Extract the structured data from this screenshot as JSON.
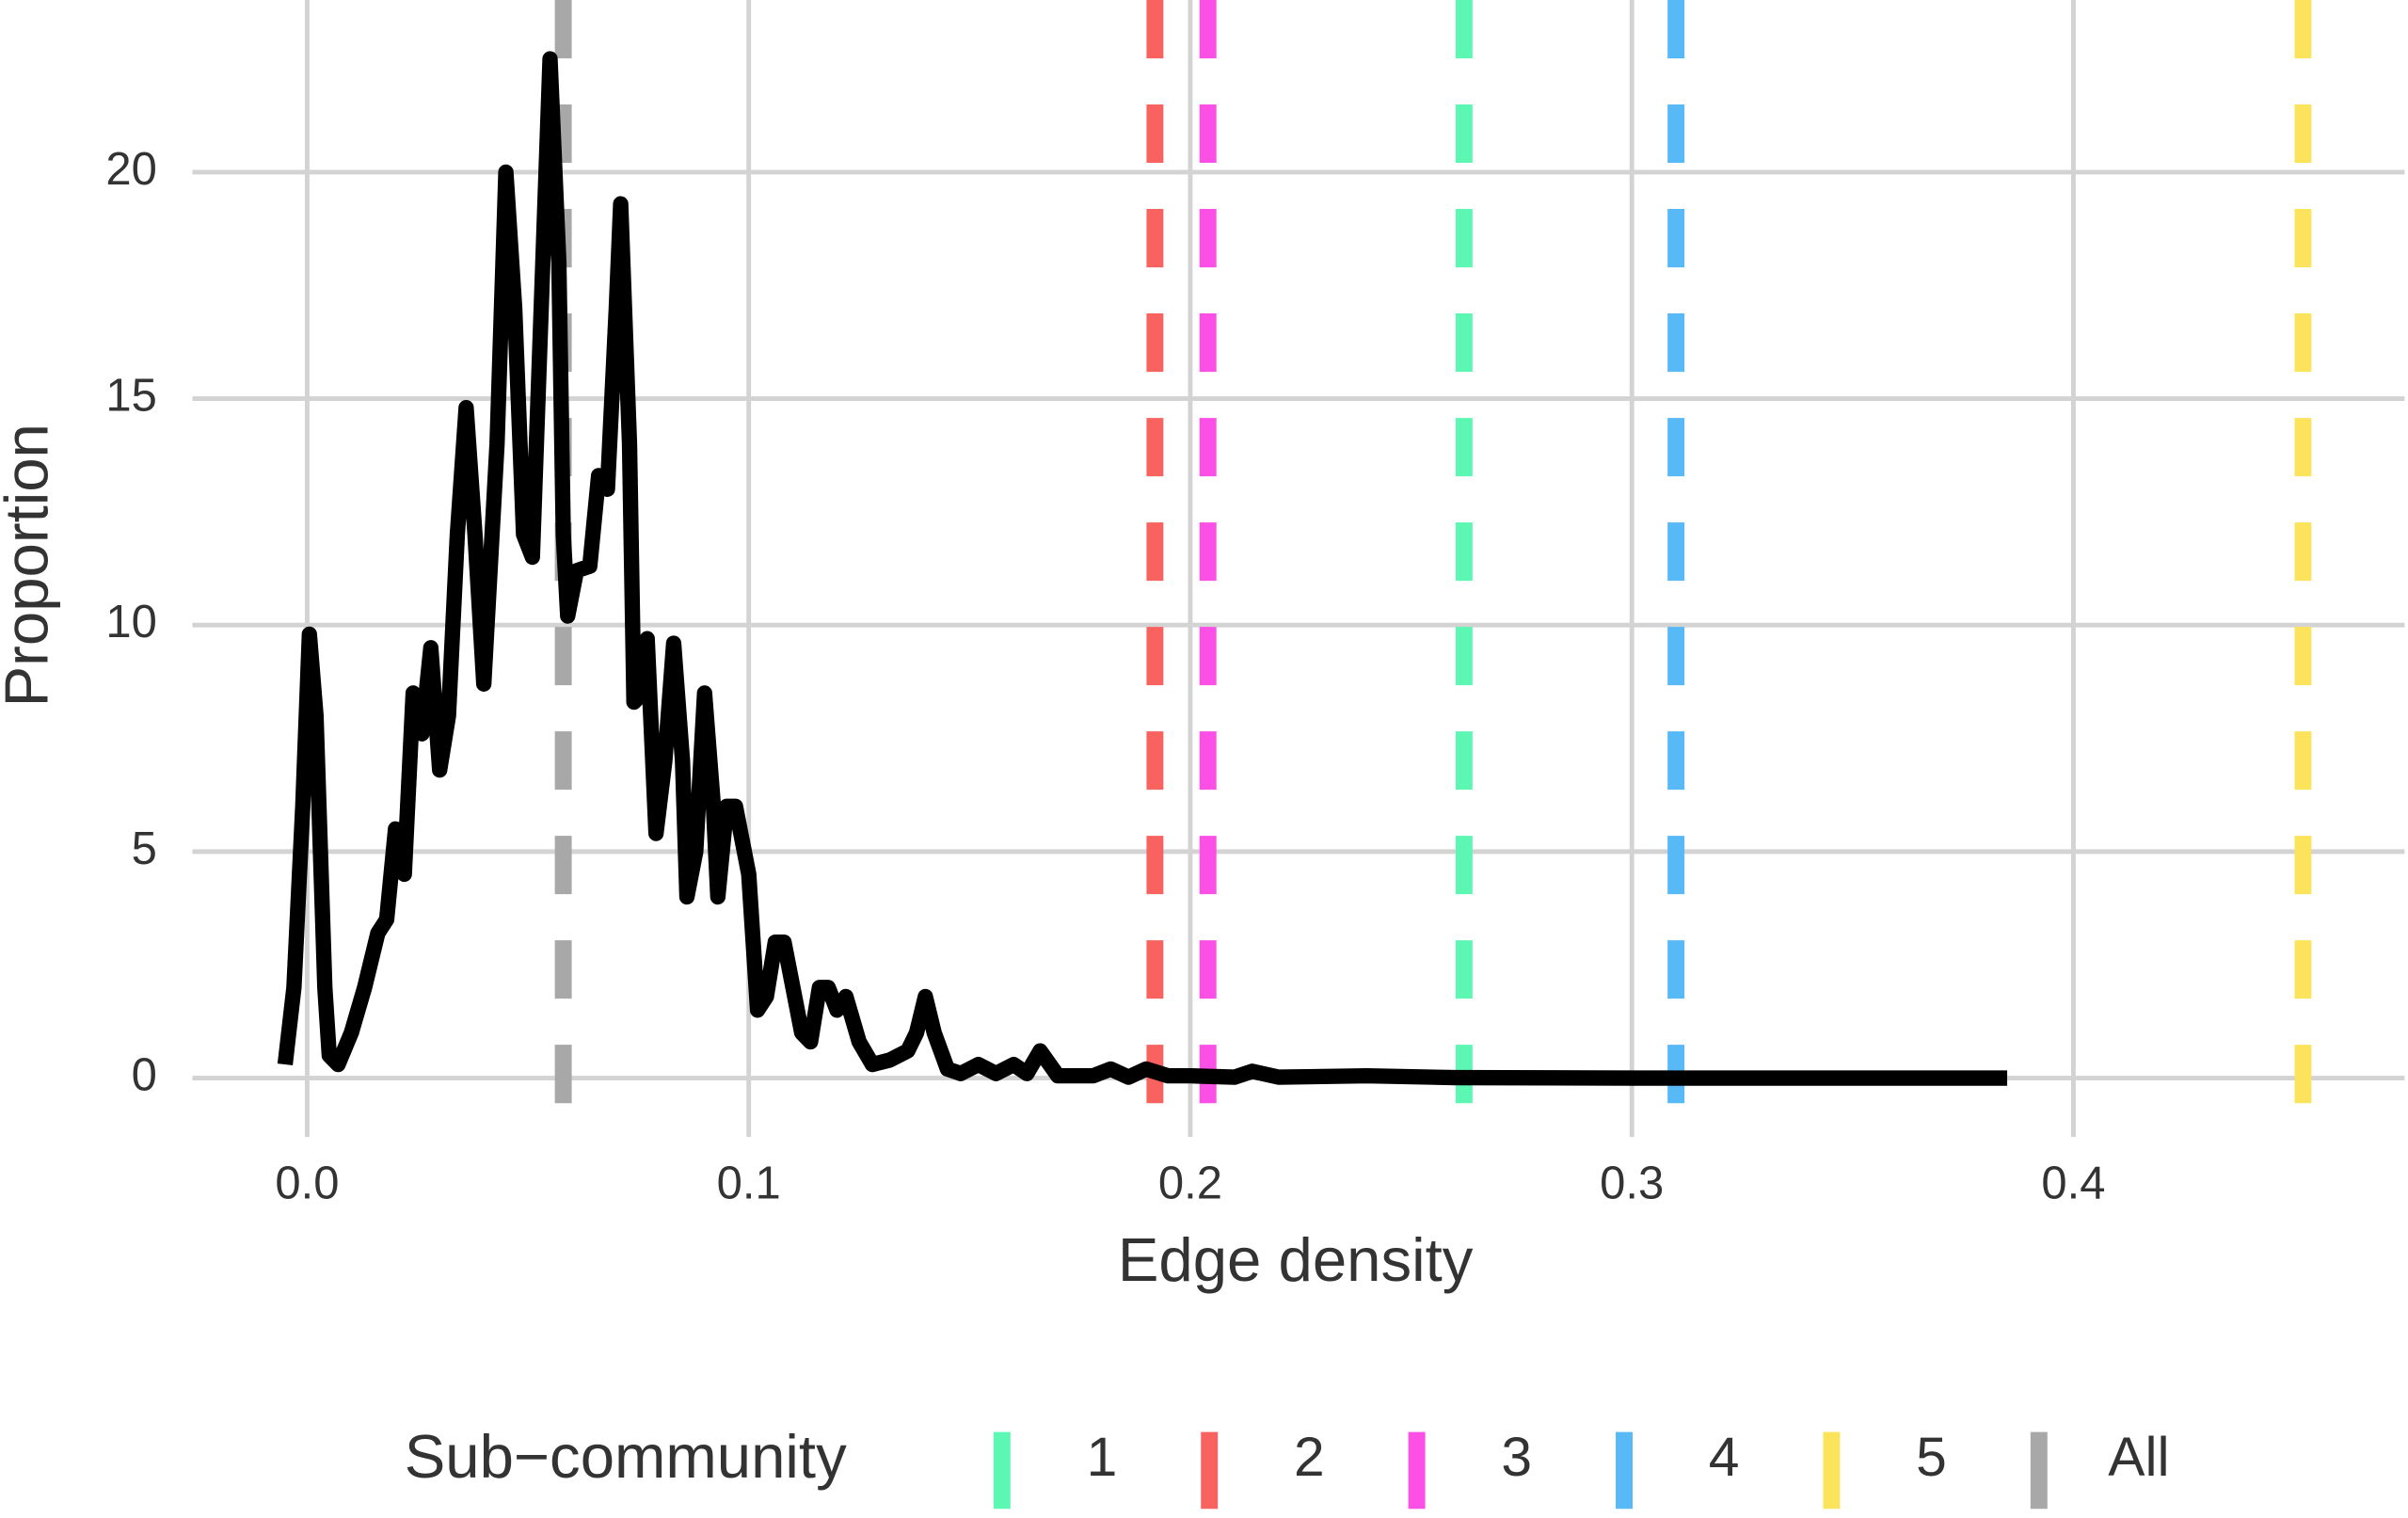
{
  "chart_data": {
    "type": "line",
    "x_label": "Edge density",
    "y_label": "Proportion",
    "xlim": [
      -0.026,
      0.475
    ],
    "ylim": [
      -1.3,
      23.8
    ],
    "xticks": [
      {
        "value": 0,
        "label": "0.0"
      },
      0.1,
      0.2,
      0.3,
      0.4
    ],
    "yticks": [
      0,
      5,
      10,
      15,
      20
    ],
    "grid": true,
    "x": [
      -0.005,
      -0.003,
      -0.001,
      0.0005,
      0.002,
      0.004,
      0.005,
      0.007,
      0.01,
      0.013,
      0.016,
      0.018,
      0.02,
      0.022,
      0.024,
      0.026,
      0.028,
      0.03,
      0.032,
      0.034,
      0.036,
      0.038,
      0.04,
      0.043,
      0.045,
      0.047,
      0.049,
      0.051,
      0.053,
      0.055,
      0.057,
      0.058,
      0.059,
      0.061,
      0.064,
      0.066,
      0.068,
      0.07,
      0.071,
      0.073,
      0.074,
      0.076,
      0.077,
      0.079,
      0.081,
      0.083,
      0.085,
      0.086,
      0.088,
      0.09,
      0.092,
      0.093,
      0.095,
      0.097,
      0.1,
      0.102,
      0.104,
      0.106,
      0.108,
      0.11,
      0.112,
      0.114,
      0.116,
      0.118,
      0.12,
      0.122,
      0.125,
      0.128,
      0.132,
      0.136,
      0.138,
      0.14,
      0.142,
      0.145,
      0.148,
      0.152,
      0.156,
      0.16,
      0.163,
      0.166,
      0.17,
      0.178,
      0.182,
      0.186,
      0.19,
      0.195,
      0.2,
      0.21,
      0.214,
      0.22,
      0.24,
      0.26,
      0.3,
      0.385
    ],
    "series": [
      {
        "color": "#000000",
        "values": [
          0.3,
          2,
          6,
          9.8,
          8,
          2,
          0.5,
          0.3,
          1,
          2,
          3.2,
          3.5,
          5.5,
          4.5,
          8.5,
          7.6,
          9.5,
          6.8,
          8,
          12,
          14.8,
          12,
          8.7,
          14,
          20,
          17,
          12,
          11.5,
          17,
          22.5,
          18,
          12,
          10.2,
          11.2,
          11.3,
          13.3,
          13,
          17,
          19.3,
          14,
          8.3,
          8.5,
          9.7,
          5.4,
          7,
          9.6,
          7,
          4,
          5,
          8.5,
          6,
          4,
          6,
          6,
          4.5,
          1.5,
          1.8,
          3,
          3,
          2,
          1,
          0.8,
          2,
          2,
          1.5,
          1.8,
          0.8,
          0.3,
          0.4,
          0.6,
          1,
          1.8,
          1,
          0.2,
          0.1,
          0.3,
          0.1,
          0.3,
          0.1,
          0.6,
          0.05,
          0.05,
          0.2,
          0.02,
          0.2,
          0.05,
          0.05,
          0.02,
          0.15,
          0.02,
          0.05,
          0.01,
          0,
          0
        ]
      }
    ],
    "legend_title": "Sub−community",
    "vlines": [
      {
        "name": "1",
        "x": 0.262,
        "color": "#5cf7b2"
      },
      {
        "name": "2",
        "x": 0.192,
        "color": "#f8625f"
      },
      {
        "name": "3",
        "x": 0.204,
        "color": "#fb4fe6"
      },
      {
        "name": "4",
        "x": 0.31,
        "color": "#58b9f7"
      },
      {
        "name": "5",
        "x": 0.452,
        "color": "#fbe45c"
      },
      {
        "name": "All",
        "x": 0.058,
        "color": "#a8a8a8"
      }
    ]
  }
}
